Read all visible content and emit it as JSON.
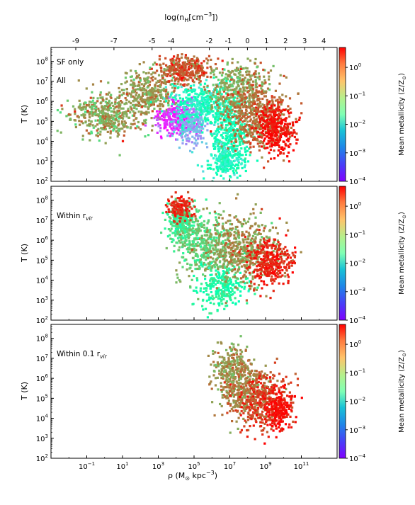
{
  "figure": {
    "top_axis_label": "log(n",
    "top_axis_label_sub": "H",
    "top_axis_label_rest": "[cm",
    "top_axis_label_sup": "−3",
    "top_axis_label_end": "])",
    "xlabel_prefix": "ρ (M",
    "xlabel_sun": "⊙",
    "xlabel_mid": " kpc",
    "xlabel_sup": "−3",
    "xlabel_end": ")",
    "ylabel": "T (K)",
    "colorbar_label": "Mean metallicity (Z/Z",
    "colorbar_label_sun": "⊙",
    "colorbar_label_end": ")"
  },
  "chart_data": [
    {
      "type": "heatmap",
      "panel": 1,
      "annotations": [
        "SF only",
        "All"
      ],
      "x_scale": "log",
      "x_ticks": [
        {
          "value": 0.1,
          "base": "10",
          "exp": "−1"
        },
        {
          "value": 10,
          "base": "10",
          "exp": "1"
        },
        {
          "value": 1000,
          "base": "10",
          "exp": "3"
        },
        {
          "value": 100000,
          "base": "10",
          "exp": "5"
        },
        {
          "value": 10000000,
          "base": "10",
          "exp": "7"
        },
        {
          "value": 1000000000,
          "base": "10",
          "exp": "9"
        },
        {
          "value": 100000000000,
          "base": "10",
          "exp": "11"
        }
      ],
      "xlim": [
        0.001,
        10000000000000
      ],
      "top_x_ticks": [
        "-9",
        "-7",
        "-5",
        "-4",
        "-2",
        "-1",
        "0",
        "1",
        "2",
        "3",
        "4"
      ],
      "top_x_tick_values": [
        -9,
        -7,
        -5,
        -4,
        -2,
        -1,
        0,
        1,
        2,
        3,
        4
      ],
      "y_scale": "log",
      "ylim": [
        100,
        500000000
      ],
      "y_ticks": [
        {
          "value": 100,
          "base": "10",
          "exp": "2"
        },
        {
          "value": 1000,
          "base": "10",
          "exp": "3"
        },
        {
          "value": 10000,
          "base": "10",
          "exp": "4"
        },
        {
          "value": 100000,
          "base": "10",
          "exp": "5"
        },
        {
          "value": 1000000,
          "base": "10",
          "exp": "6"
        },
        {
          "value": 10000000,
          "base": "10",
          "exp": "7"
        },
        {
          "value": 100000000,
          "base": "10",
          "exp": "8"
        }
      ],
      "colorbar": {
        "scale": "log",
        "range": [
          0.0001,
          5
        ],
        "colormap": "rainbow",
        "ticks": [
          {
            "value": 1,
            "base": "10",
            "exp": "0"
          },
          {
            "value": 0.1,
            "base": "10",
            "exp": "−1"
          },
          {
            "value": 0.01,
            "base": "10",
            "exp": "−2"
          },
          {
            "value": 0.001,
            "base": "10",
            "exp": "−3"
          },
          {
            "value": 0.0001,
            "base": "10",
            "exp": "−4"
          }
        ]
      }
    },
    {
      "type": "heatmap",
      "panel": 2,
      "annotations": [
        "Within r"
      ],
      "annotation_sub": "vir",
      "x_scale": "log",
      "xlim": [
        0.001,
        10000000000000
      ],
      "y_scale": "log",
      "ylim": [
        100,
        500000000
      ],
      "colorbar": {
        "scale": "log",
        "range": [
          0.0001,
          5
        ],
        "colormap": "rainbow"
      }
    },
    {
      "type": "heatmap",
      "panel": 3,
      "annotations": [
        "Within 0.1 r"
      ],
      "annotation_sub": "vir",
      "x_scale": "log",
      "xlim": [
        0.001,
        10000000000000
      ],
      "y_scale": "log",
      "ylim": [
        100,
        500000000
      ],
      "colorbar": {
        "scale": "log",
        "range": [
          0.0001,
          5
        ],
        "colormap": "rainbow"
      }
    }
  ]
}
